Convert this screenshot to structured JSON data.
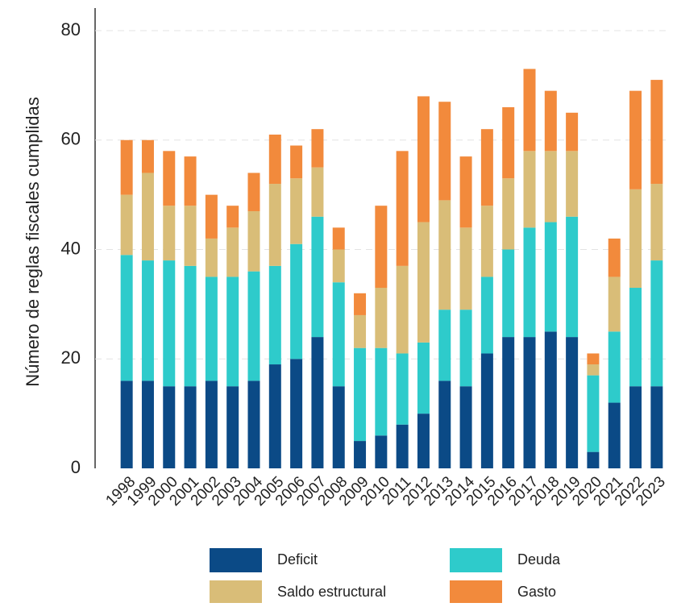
{
  "chart_data": {
    "type": "stacked_bar",
    "ylabel": "Número de reglas fiscales cumplidas",
    "categories": [
      "1998",
      "1999",
      "2000",
      "2001",
      "2002",
      "2003",
      "2004",
      "2005",
      "2006",
      "2007",
      "2008",
      "2009",
      "2010",
      "2011",
      "2012",
      "2013",
      "2014",
      "2015",
      "2016",
      "2017",
      "2018",
      "2019",
      "2020",
      "2021",
      "2022",
      "2023"
    ],
    "series": [
      {
        "name": "Deficit",
        "color": "#0b4a86",
        "values": [
          16,
          16,
          15,
          15,
          16,
          15,
          16,
          19,
          20,
          24,
          15,
          5,
          6,
          8,
          10,
          16,
          15,
          21,
          24,
          24,
          25,
          24,
          3,
          12,
          15,
          15
        ]
      },
      {
        "name": "Deuda",
        "color": "#2ecbcb",
        "values": [
          23,
          22,
          23,
          22,
          19,
          20,
          20,
          18,
          21,
          22,
          19,
          17,
          16,
          13,
          13,
          13,
          14,
          14,
          16,
          20,
          20,
          22,
          14,
          13,
          18,
          23
        ]
      },
      {
        "name": "Saldo estructural",
        "color": "#d9bd78",
        "values": [
          11,
          16,
          10,
          11,
          7,
          9,
          11,
          15,
          12,
          9,
          6,
          6,
          11,
          16,
          22,
          20,
          15,
          13,
          13,
          14,
          13,
          12,
          2,
          10,
          18,
          14
        ]
      },
      {
        "name": "Gasto",
        "color": "#f28a3c",
        "values": [
          10,
          6,
          10,
          9,
          8,
          4,
          7,
          9,
          6,
          7,
          4,
          4,
          15,
          21,
          23,
          18,
          13,
          14,
          13,
          15,
          11,
          7,
          2,
          7,
          18,
          19
        ]
      }
    ],
    "ylim": [
      0,
      80
    ],
    "yticks": [
      0,
      20,
      40,
      60,
      80
    ],
    "grid": true
  }
}
